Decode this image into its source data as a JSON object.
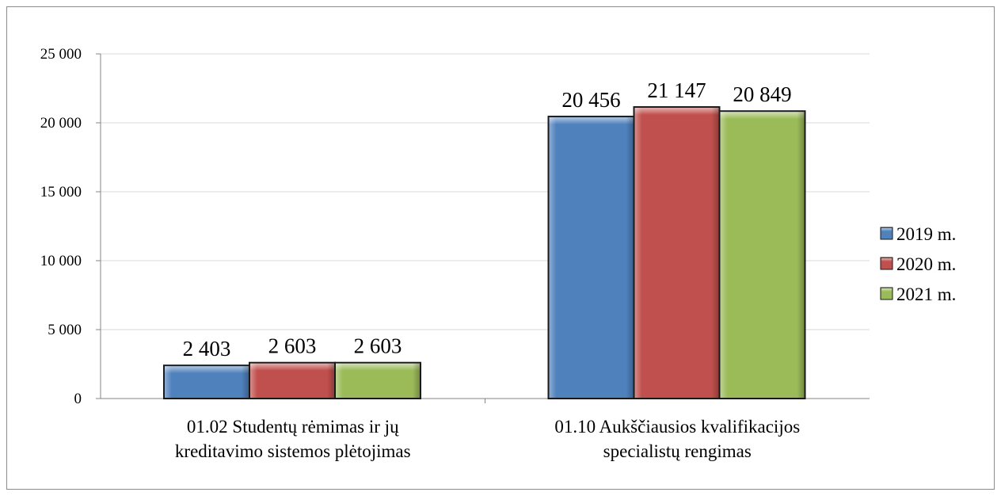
{
  "chart_data": {
    "type": "bar",
    "title": "",
    "xlabel": "",
    "ylabel": "",
    "categories": [
      [
        "01.02 Studentų rėmimas ir jų",
        "kreditavimo sistemos plėtojimas"
      ],
      [
        "01.10 Aukščiausios kvalifikacijos",
        "specialistų rengimas"
      ]
    ],
    "series": [
      {
        "name": "2019 m.",
        "color": "#4f81bd",
        "values": [
          2403,
          20456
        ],
        "labels": [
          "2 403",
          "20 456"
        ]
      },
      {
        "name": "2020 m.",
        "color": "#c0504d",
        "values": [
          2603,
          21147
        ],
        "labels": [
          "2 603",
          "21 147"
        ]
      },
      {
        "name": "2021 m.",
        "color": "#9bbb59",
        "values": [
          2603,
          20849
        ],
        "labels": [
          "2 603",
          "20 849"
        ]
      }
    ],
    "ylim": [
      0,
      25000
    ],
    "yticks": [
      0,
      5000,
      10000,
      15000,
      20000,
      25000
    ],
    "ytick_labels": [
      "0",
      "5 000",
      "10 000",
      "15 000",
      "20 000",
      "25 000"
    ],
    "grid": true,
    "legend_position": "right"
  }
}
